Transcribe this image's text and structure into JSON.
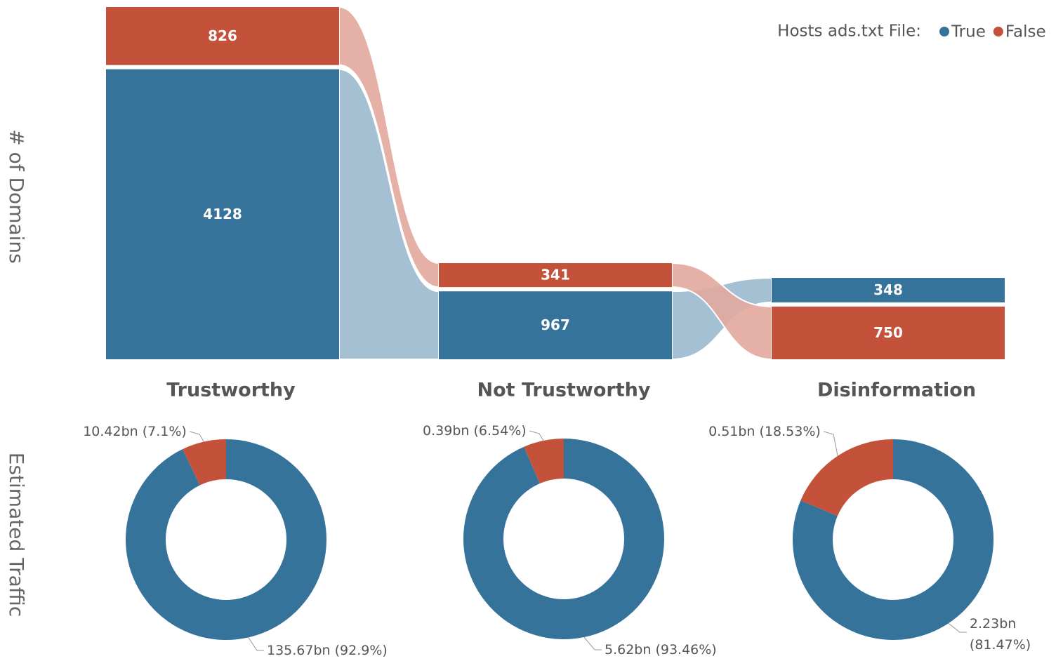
{
  "chart_data": [
    {
      "type": "bar",
      "stacked": true,
      "ylabel": "# of Domains",
      "legend_title": "Hosts ads.txt File:",
      "legend": "top-right",
      "categories": [
        "Trustworthy",
        "Not Trustworthy",
        "Disinformation"
      ],
      "series": [
        {
          "name": "True",
          "color": "#36739a",
          "values": [
            4128,
            967,
            348
          ]
        },
        {
          "name": "False",
          "color": "#c4523a",
          "values": [
            826,
            341,
            750
          ]
        }
      ]
    },
    {
      "type": "pie",
      "donut": true,
      "ylabel": "Estimated Traffic",
      "colors": [
        "#36739a",
        "#c4523a"
      ],
      "values": [
        135.67,
        10.42
      ],
      "value_labels": [
        "135.67bn (92.9%)",
        "10.42bn (7.1%)"
      ]
    },
    {
      "type": "pie",
      "donut": true,
      "colors": [
        "#36739a",
        "#c4523a"
      ],
      "values": [
        5.62,
        0.39
      ],
      "value_labels": [
        "5.62bn (93.46%)",
        "0.39bn (6.54%)"
      ]
    },
    {
      "type": "pie",
      "donut": true,
      "colors": [
        "#36739a",
        "#c4523a"
      ],
      "values": [
        2.23,
        0.51
      ],
      "value_labels": [
        "2.23bn (81.47%)",
        "0.51bn (18.53%)"
      ]
    }
  ]
}
